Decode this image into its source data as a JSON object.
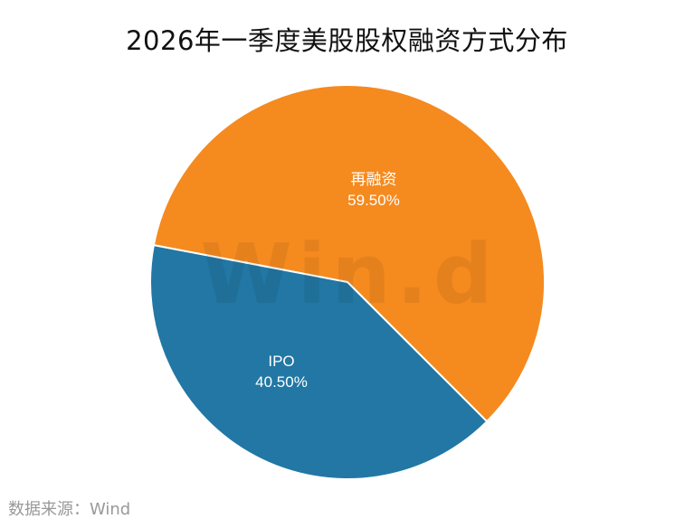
{
  "title": "2026年一季度美股股权融资方式分布",
  "source": "数据来源：Wind",
  "watermark": "Win.d",
  "colors": {
    "再融资": "#f58a1f",
    "IPO": "#2277a4",
    "separator": "#ffffff"
  },
  "chart_data": {
    "type": "pie",
    "title": "2026年一季度美股股权融资方式分布",
    "categories": [
      "再融资",
      "IPO"
    ],
    "values": [
      59.5,
      40.5
    ],
    "labels": [
      "59.50%",
      "40.50%"
    ],
    "colors": [
      "#f58a1f",
      "#2277a4"
    ],
    "start_angle_deg": 190.8,
    "direction": "clockwise",
    "legend": "none (labels inside slices)",
    "source": "Wind"
  },
  "slices": [
    {
      "name": "再融资",
      "percent_label": "59.50%"
    },
    {
      "name": "IPO",
      "percent_label": "40.50%"
    }
  ]
}
